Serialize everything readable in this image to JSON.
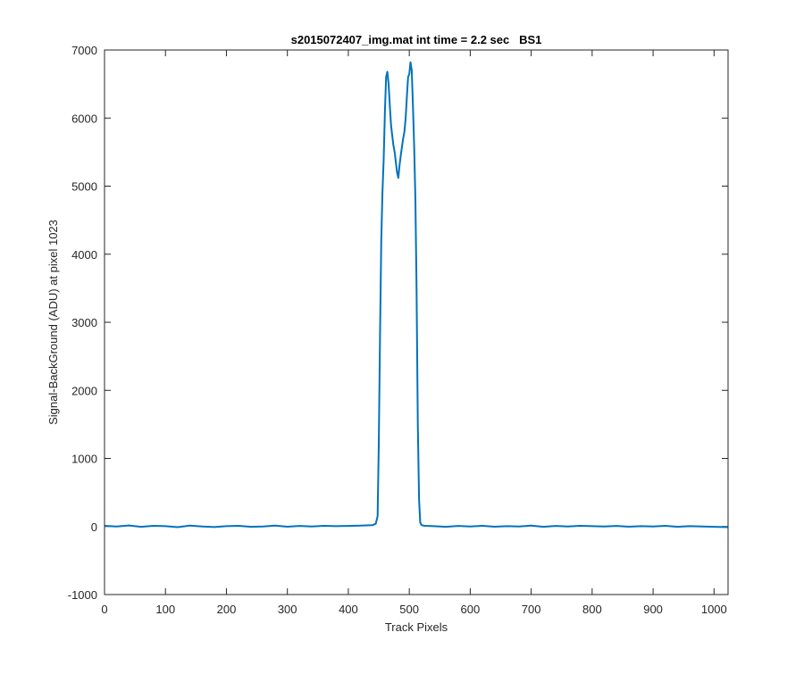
{
  "chart_data": {
    "type": "line",
    "title": "s2015072407_img.mat int time = 2.2 sec   BS1",
    "xlabel": "Track Pixels",
    "ylabel": "Signal-BackGround (ADU) at pixel 1023",
    "xlim": [
      0,
      1023
    ],
    "ylim": [
      -1000,
      7000
    ],
    "x_ticks": [
      0,
      100,
      200,
      300,
      400,
      500,
      600,
      700,
      800,
      900,
      1000
    ],
    "y_ticks": [
      -1000,
      0,
      1000,
      2000,
      3000,
      4000,
      5000,
      6000,
      7000
    ],
    "grid": false,
    "legend": "none",
    "line_color": "#0072bd",
    "series": [
      {
        "x": [
          0,
          20,
          40,
          60,
          80,
          100,
          120,
          140,
          160,
          180,
          200,
          220,
          240,
          260,
          280,
          300,
          320,
          340,
          360,
          380,
          400,
          420,
          440,
          445,
          448,
          450,
          452,
          454,
          456,
          458,
          460,
          462,
          464,
          466,
          468,
          470,
          472,
          474,
          476,
          478,
          480,
          482,
          484,
          486,
          488,
          490,
          492,
          494,
          496,
          498,
          500,
          502,
          504,
          506,
          508,
          510,
          512,
          514,
          516,
          518,
          520,
          525,
          540,
          560,
          580,
          600,
          620,
          640,
          660,
          680,
          700,
          720,
          740,
          760,
          780,
          800,
          820,
          840,
          860,
          880,
          900,
          920,
          940,
          960,
          980,
          1000,
          1023
        ],
        "y": [
          10,
          0,
          15,
          -5,
          10,
          5,
          -10,
          12,
          0,
          -8,
          5,
          10,
          -5,
          0,
          12,
          -3,
          8,
          0,
          10,
          5,
          8,
          12,
          20,
          40,
          150,
          1200,
          2800,
          4200,
          4900,
          5400,
          6100,
          6600,
          6680,
          6500,
          6200,
          5900,
          5750,
          5600,
          5500,
          5350,
          5200,
          5120,
          5300,
          5450,
          5580,
          5700,
          5800,
          6000,
          6300,
          6600,
          6650,
          6820,
          6700,
          6200,
          5600,
          4800,
          3500,
          1500,
          400,
          60,
          20,
          10,
          5,
          -5,
          8,
          0,
          10,
          -3,
          5,
          0,
          12,
          -5,
          8,
          0,
          10,
          5,
          0,
          8,
          -3,
          5,
          0,
          10,
          -5,
          5,
          0,
          -5,
          -10
        ]
      }
    ]
  }
}
